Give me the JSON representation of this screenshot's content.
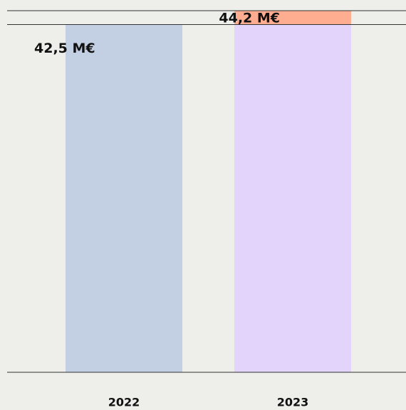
{
  "chart_data": {
    "type": "bar",
    "categories": [
      "2022",
      "2023"
    ],
    "series": [
      {
        "colors": [
          "#c3cfe2",
          "#e2d4fb"
        ],
        "values": [
          42.5,
          42.5
        ]
      },
      {
        "color": "#ffad91",
        "values": [
          null,
          1.7
        ]
      }
    ],
    "totals": [
      42.5,
      44.2
    ],
    "total_labels": [
      "42,5 M€",
      "44,2 M€"
    ],
    "ylim": [
      0,
      44.2
    ]
  }
}
